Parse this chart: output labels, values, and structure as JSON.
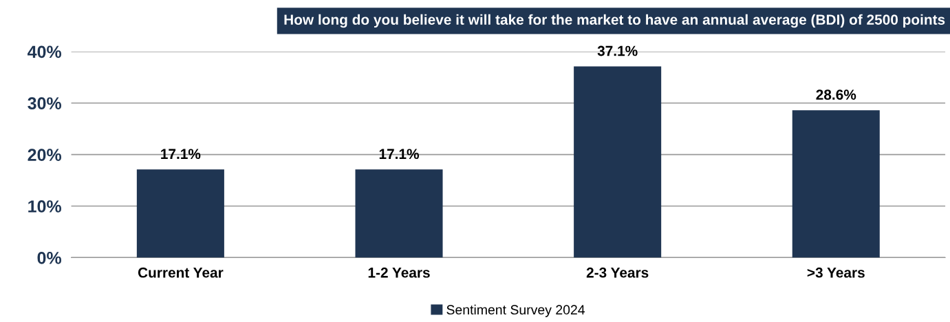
{
  "chart_data": {
    "type": "bar",
    "title": "How long do you believe it will take for the market to have an annual average (BDI) of 2500 points",
    "categories": [
      "Current Year",
      "1-2 Years",
      "2-3 Years",
      ">3 Years"
    ],
    "series": [
      {
        "name": "Sentiment Survey 2024",
        "color": "#1f3552",
        "values": [
          17.1,
          17.1,
          37.1,
          28.6
        ]
      }
    ],
    "value_labels": [
      "17.1%",
      "17.1%",
      "37.1%",
      "28.6%"
    ],
    "ylim": [
      0,
      40
    ],
    "yticks": [
      {
        "value": 0,
        "label": "0%"
      },
      {
        "value": 10,
        "label": "10%"
      },
      {
        "value": 20,
        "label": "20%"
      },
      {
        "value": 30,
        "label": "30%"
      },
      {
        "value": 40,
        "label": "40%"
      }
    ],
    "grid": "y",
    "legend": "bottom"
  }
}
